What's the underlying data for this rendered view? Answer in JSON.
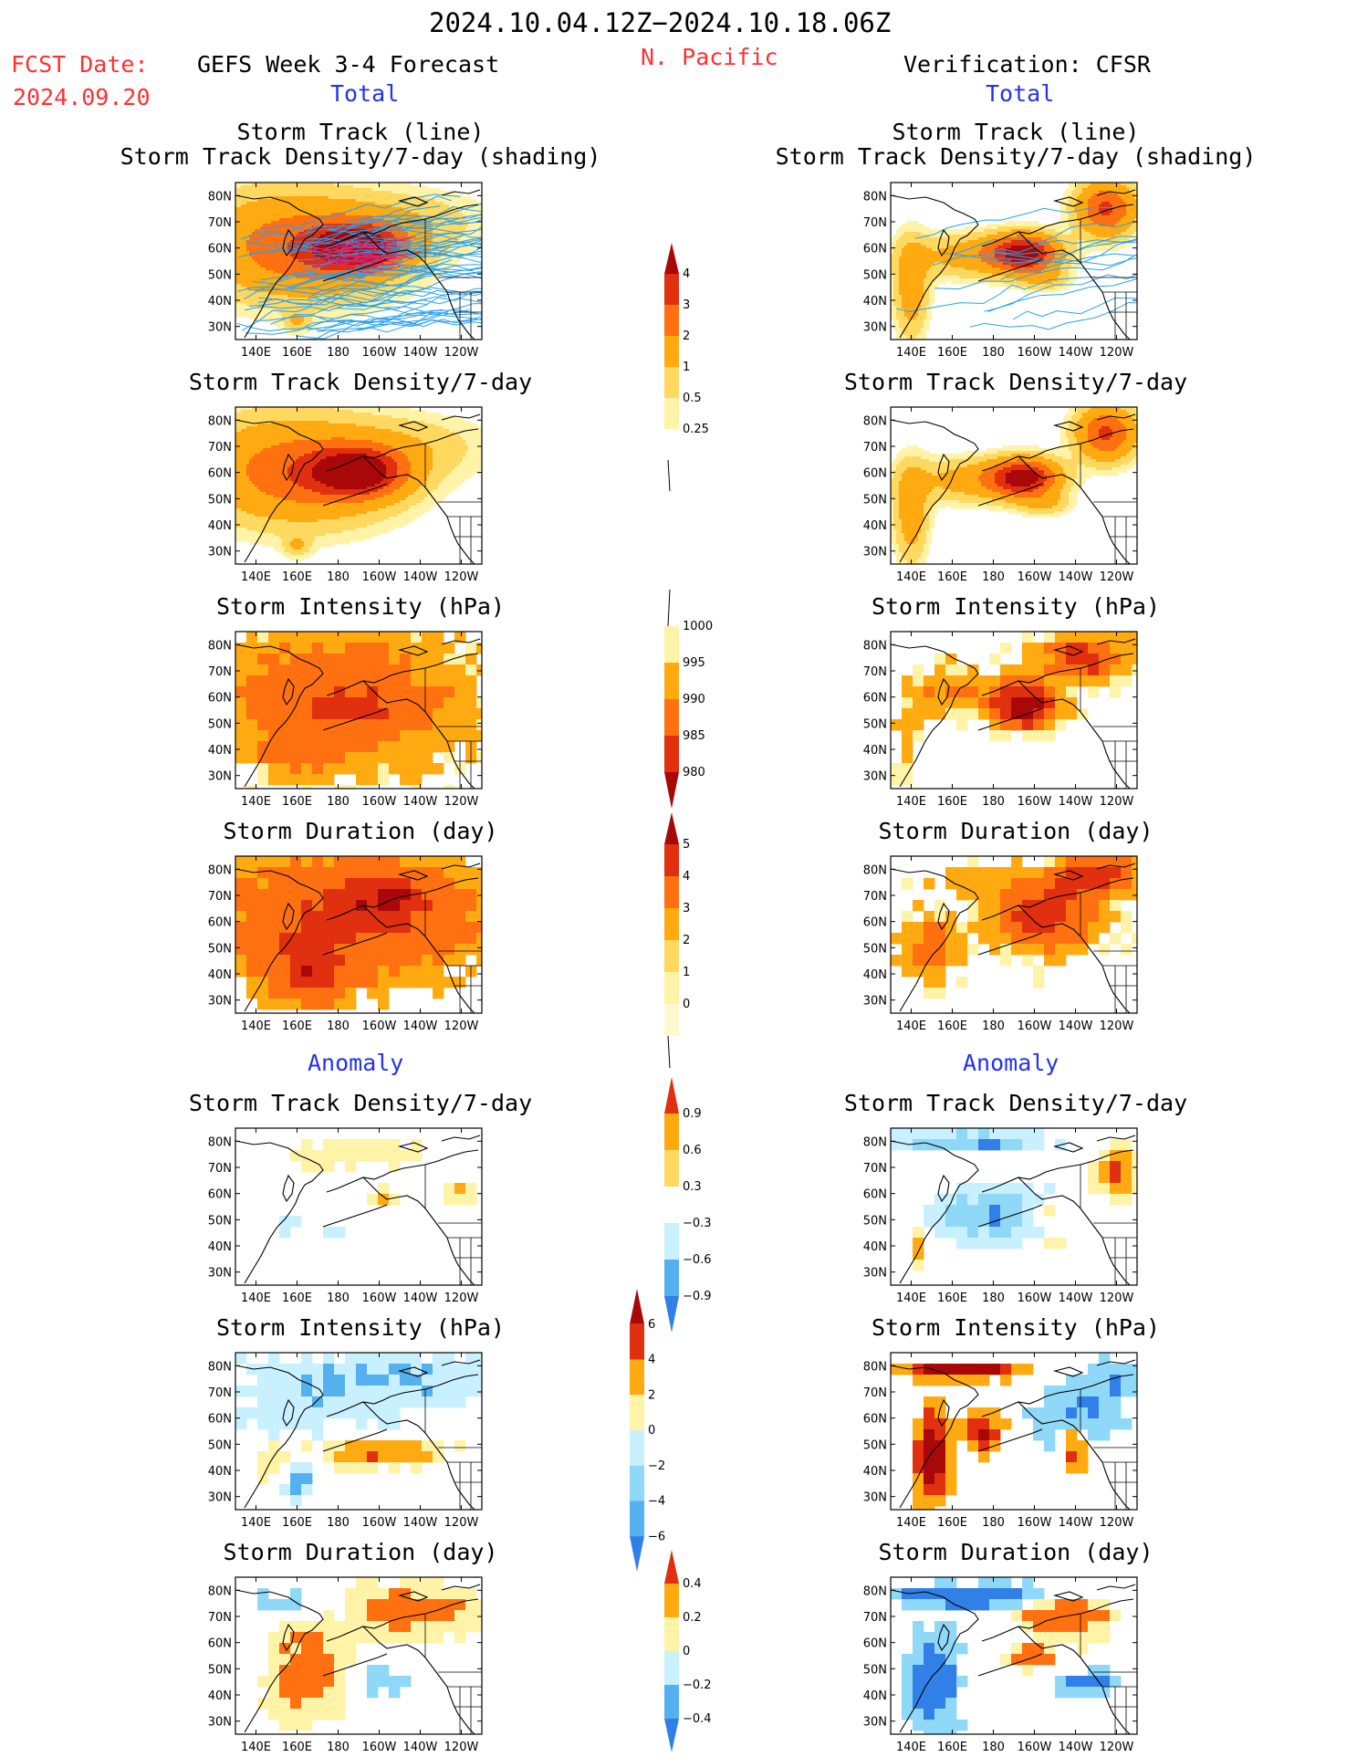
{
  "header": {
    "date_range": "2024.10.04.12Z−2024.10.18.06Z",
    "region": "N. Pacific",
    "fcst_label": "FCST Date:",
    "fcst_date": "2024.09.20",
    "left_model": "GEFS Week 3-4 Forecast",
    "right_model": "Verification: CFSR",
    "total_left": "Total",
    "total_right": "Total",
    "anomaly_left": "Anomaly",
    "anomaly_right": "Anomaly"
  },
  "panel_titles": {
    "st_line_1": "Storm Track (line)",
    "st_line_2": "Storm Track Density/7-day (shading)",
    "std": "Storm Track Density/7-day",
    "si": "Storm Intensity (hPa)",
    "sd": "Storm Duration (day)"
  },
  "axes": {
    "lon_ticks": [
      "140E",
      "160E",
      "180",
      "160W",
      "140W",
      "120W"
    ],
    "lat_ticks": [
      "80N",
      "70N",
      "60N",
      "50N",
      "40N",
      "30N"
    ]
  },
  "colors": {
    "warm": [
      "#fff3a8",
      "#ffd860",
      "#ffaa10",
      "#ff7010",
      "#e03010",
      "#a80808"
    ],
    "cool": [
      "#c8f0ff",
      "#90d8f8",
      "#55b0f0",
      "#3080e8",
      "#1858d0"
    ],
    "track_line": "#2aa0f0",
    "coast": "#000000"
  },
  "chart_data": [
    {
      "type": "heatmap",
      "panel": "forecast-total-track",
      "title": "Storm Track (line) / Storm Track Density/7-day (shading)",
      "xlabel": "",
      "ylabel": "",
      "x_ticks": [
        "140E",
        "160E",
        "180",
        "160W",
        "140W",
        "120W"
      ],
      "y_ticks": [
        "80N",
        "70N",
        "60N",
        "50N",
        "40N",
        "30N"
      ]
    },
    {
      "type": "heatmap",
      "panel": "forecast-total-density",
      "title": "Storm Track Density/7-day"
    },
    {
      "type": "heatmap",
      "panel": "forecast-total-intensity",
      "title": "Storm Intensity (hPa)"
    },
    {
      "type": "heatmap",
      "panel": "forecast-total-duration",
      "title": "Storm Duration (day)"
    },
    {
      "type": "heatmap",
      "panel": "forecast-anom-density",
      "title": "Storm Track Density/7-day"
    },
    {
      "type": "heatmap",
      "panel": "forecast-anom-intensity",
      "title": "Storm Intensity (hPa)"
    },
    {
      "type": "heatmap",
      "panel": "forecast-anom-duration",
      "title": "Storm Duration (day)"
    },
    {
      "type": "heatmap",
      "panel": "verif-total-track",
      "title": "Storm Track (line) / Storm Track Density/7-day (shading)"
    },
    {
      "type": "heatmap",
      "panel": "verif-total-density",
      "title": "Storm Track Density/7-day"
    },
    {
      "type": "heatmap",
      "panel": "verif-total-intensity",
      "title": "Storm Intensity (hPa)"
    },
    {
      "type": "heatmap",
      "panel": "verif-total-duration",
      "title": "Storm Duration (day)"
    },
    {
      "type": "heatmap",
      "panel": "verif-anom-density",
      "title": "Storm Track Density/7-day"
    },
    {
      "type": "heatmap",
      "panel": "verif-anom-intensity",
      "title": "Storm Intensity (hPa)"
    },
    {
      "type": "heatmap",
      "panel": "verif-anom-duration",
      "title": "Storm Duration (day)"
    }
  ],
  "colorbars": [
    {
      "name": "density-total",
      "labels": [
        "4",
        "3",
        "2",
        "1",
        "0.5",
        "0.25"
      ]
    },
    {
      "name": "intensity-total",
      "labels": [
        "1000",
        "995",
        "990",
        "985",
        "980"
      ]
    },
    {
      "name": "duration-total",
      "labels": [
        "5",
        "4",
        "3",
        "2",
        "1",
        "0"
      ]
    },
    {
      "name": "density-anom",
      "labels": [
        "0.9",
        "0.6",
        "0.3",
        "−0.3",
        "−0.6",
        "−0.9"
      ]
    },
    {
      "name": "intensity-anom",
      "labels": [
        "6",
        "4",
        "2",
        "0",
        "−2",
        "−4",
        "−6"
      ]
    },
    {
      "name": "duration-anom",
      "labels": [
        "0.4",
        "0.2",
        "0",
        "−0.2",
        "−0.4"
      ]
    }
  ]
}
